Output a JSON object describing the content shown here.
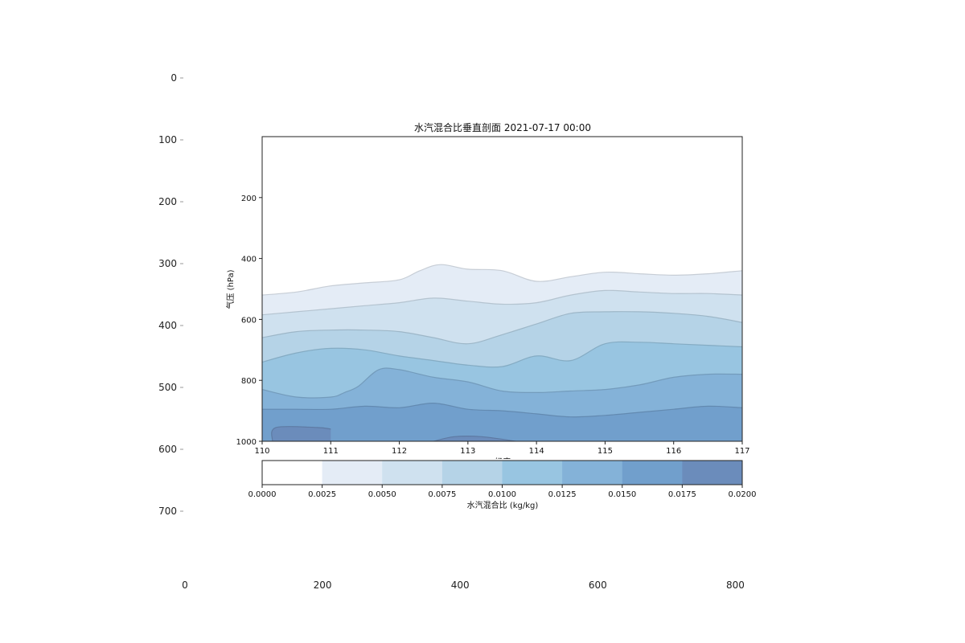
{
  "chart_data": [
    {
      "type": "image-axes",
      "x_ticks": [
        0,
        200,
        400,
        600,
        800
      ],
      "y_ticks": [
        0,
        100,
        200,
        300,
        400,
        500,
        600,
        700
      ],
      "xlim": [
        0,
        900
      ],
      "ylim": [
        0,
        800
      ]
    },
    {
      "type": "contour",
      "title": "水汽混合比垂直剖面 2021-07-17 00:00",
      "xlabel": "经度",
      "ylabel": "气压 (hPa)",
      "xlim": [
        110,
        117
      ],
      "ylim": [
        1000,
        0
      ],
      "x_ticks": [
        110,
        111,
        112,
        113,
        114,
        115,
        116,
        117
      ],
      "y_ticks": [
        200,
        400,
        600,
        800,
        1000
      ],
      "levels": [
        0.0,
        0.0025,
        0.005,
        0.0075,
        0.01,
        0.0125,
        0.015,
        0.0175,
        0.02
      ],
      "colors": [
        "#ffffff",
        "#e4ecf6",
        "#cfe1ef",
        "#b5d3e7",
        "#98c5e1",
        "#84b2d8",
        "#719fcc",
        "#6b8cbb"
      ],
      "contours": [
        {
          "level": 0.0025,
          "x": [
            110,
            110.5,
            111,
            111.5,
            112,
            112.3,
            112.6,
            113,
            113.5,
            114,
            114.5,
            115,
            115.5,
            116,
            116.5,
            117
          ],
          "p": [
            520,
            510,
            490,
            480,
            470,
            440,
            420,
            435,
            440,
            475,
            460,
            445,
            450,
            455,
            450,
            440
          ]
        },
        {
          "level": 0.005,
          "x": [
            110,
            110.5,
            111,
            111.5,
            112,
            112.5,
            113,
            113.5,
            114,
            114.5,
            115,
            115.5,
            116,
            116.5,
            117
          ],
          "p": [
            585,
            575,
            565,
            555,
            545,
            530,
            540,
            550,
            545,
            520,
            505,
            510,
            515,
            515,
            520
          ]
        },
        {
          "level": 0.0075,
          "x": [
            110,
            110.5,
            111,
            111.5,
            112,
            112.5,
            113,
            113.5,
            114,
            114.5,
            115,
            115.5,
            116,
            116.5,
            117
          ],
          "p": [
            660,
            640,
            635,
            635,
            640,
            660,
            680,
            650,
            615,
            580,
            575,
            575,
            580,
            590,
            610
          ]
        },
        {
          "level": 0.01,
          "x": [
            110,
            110.5,
            111,
            111.5,
            112,
            112.5,
            113,
            113.5,
            114,
            114.5,
            115,
            115.5,
            116,
            116.5,
            117
          ],
          "p": [
            740,
            710,
            695,
            700,
            720,
            735,
            750,
            755,
            720,
            735,
            680,
            675,
            680,
            685,
            690
          ]
        },
        {
          "level": 0.0125,
          "x": [
            110,
            110.5,
            111,
            111.2,
            111.4,
            111.7,
            112,
            112.5,
            113,
            113.5,
            114,
            114.5,
            115,
            115.5,
            116,
            116.5,
            117
          ],
          "p": [
            830,
            855,
            855,
            840,
            820,
            765,
            765,
            790,
            805,
            835,
            840,
            835,
            830,
            815,
            790,
            780,
            780
          ]
        },
        {
          "level": 0.015,
          "x": [
            110,
            110.5,
            111,
            111.5,
            112,
            112.5,
            113,
            113.5,
            114,
            114.5,
            115,
            115.5,
            116,
            116.5,
            117
          ],
          "p": [
            895,
            895,
            895,
            885,
            890,
            875,
            895,
            900,
            910,
            920,
            915,
            905,
            895,
            885,
            890
          ]
        },
        {
          "level": 0.0175,
          "x": [
            110.15,
            110.2,
            110.8,
            111.0
          ],
          "p": [
            1000,
            955,
            955,
            960
          ]
        },
        {
          "level": 0.0175,
          "x": [
            112.5,
            112.8,
            113.2,
            113.7
          ],
          "p": [
            1000,
            985,
            985,
            1000
          ]
        }
      ],
      "colorbar": {
        "label": "水汽混合比 (kg/kg)",
        "tick_labels": [
          "0.0000",
          "0.0025",
          "0.0050",
          "0.0075",
          "0.0100",
          "0.0125",
          "0.0150",
          "0.0175",
          "0.0200"
        ]
      }
    }
  ]
}
